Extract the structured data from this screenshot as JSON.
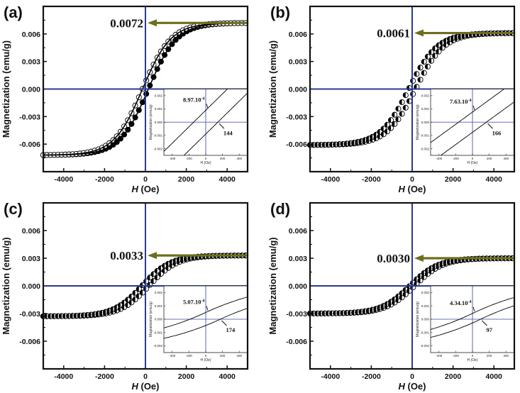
{
  "colors": {
    "frame": "#111111",
    "crosshair": "#2a3a8e",
    "inset_crosshair": "#6a74b4",
    "arrow": "#6b6e1e",
    "curve": "#000000"
  },
  "chart_data": [
    {
      "type": "scatter",
      "panel_label": "(a)",
      "xlabel_italic": "H",
      "xlabel_rest": " (Oe)",
      "ylabel": "Magnetization (emu/g)",
      "xlim": [
        -5000,
        5000
      ],
      "ylim": [
        -0.009,
        0.009
      ],
      "xticks": [
        -4000,
        -2000,
        0,
        2000,
        4000
      ],
      "xtick_labels": [
        "-4000",
        "-2000",
        "0",
        "2000",
        "4000"
      ],
      "yticks": [
        0.006,
        0.003,
        0.0,
        -0.003,
        -0.006
      ],
      "ytick_labels": [
        "0.006",
        "0.003",
        "0.000",
        "-0.003",
        "-0.006"
      ],
      "saturation_magnetization": 0.0072,
      "ms_annotation": "0.0072",
      "coercivity_Oe": 144,
      "remanence": 0.000897,
      "series_style": "hysteresis loop, filled and open circles with solid fit lines",
      "inset": {
        "xlabel": "H (Oe)",
        "ylabel": "Magnetization (emu/g)",
        "xlim": [
          -500,
          500
        ],
        "ylim": [
          -0.0025,
          0.0025
        ],
        "xticks": [
          -400,
          -200,
          0,
          200,
          400
        ],
        "xtick_labels": [
          "-400",
          "-200",
          "0",
          "200",
          "400"
        ],
        "yticks": [
          0.002,
          0.001,
          0.0,
          -0.001,
          -0.002
        ],
        "ytick_labels": [
          "0.002",
          "0.001",
          "0.000",
          "-0.001",
          "-0.002"
        ],
        "remanence_label": "8.97.10",
        "remanence_exp": "-4",
        "coercivity_label": "144",
        "slope_per_Oe": 6.2e-06
      }
    },
    {
      "type": "scatter",
      "panel_label": "(b)",
      "xlabel_italic": "H",
      "xlabel_rest": " (Oe)",
      "ylabel": "Magnetization (emu/g)",
      "xlim": [
        -5000,
        5000
      ],
      "ylim": [
        -0.009,
        0.009
      ],
      "xticks": [
        -4000,
        -2000,
        0,
        2000,
        4000
      ],
      "xtick_labels": [
        "-4000",
        "-2000",
        "0",
        "2000",
        "4000"
      ],
      "yticks": [
        0.006,
        0.003,
        0.0,
        -0.003,
        -0.006
      ],
      "ytick_labels": [
        "0.006",
        "0.003",
        "0.000",
        "-0.003",
        "-0.006"
      ],
      "saturation_magnetization": 0.0061,
      "ms_annotation": "0.0061",
      "coercivity_Oe": 166,
      "remanence": 0.000763,
      "series_style": "hysteresis loop, half-filled circles",
      "inset": {
        "xlabel": "H (Oe)",
        "ylabel": "Magnetization (emu/g)",
        "xlim": [
          -500,
          500
        ],
        "ylim": [
          -0.0025,
          0.0025
        ],
        "xticks": [
          -400,
          -200,
          0,
          200,
          400
        ],
        "xtick_labels": [
          "-400",
          "-200",
          "0",
          "200",
          "400"
        ],
        "yticks": [
          0.002,
          0.001,
          0.0,
          -0.001,
          -0.002
        ],
        "ytick_labels": [
          "0.002",
          "0.001",
          "0.000",
          "-0.001",
          "-0.002"
        ],
        "remanence_label": "7.63.10",
        "remanence_exp": "-4",
        "coercivity_label": "166",
        "slope_per_Oe": 4.6e-06
      }
    },
    {
      "type": "scatter",
      "panel_label": "(c)",
      "xlabel_italic": "H",
      "xlabel_rest": " (Oe)",
      "ylabel": "Magnetization (emu/g)",
      "xlim": [
        -5000,
        5000
      ],
      "ylim": [
        -0.009,
        0.009
      ],
      "xticks": [
        -4000,
        -2000,
        0,
        2000,
        4000
      ],
      "xtick_labels": [
        "-4000",
        "-2000",
        "0",
        "2000",
        "4000"
      ],
      "yticks": [
        0.006,
        0.003,
        0.0,
        -0.003,
        -0.006
      ],
      "ytick_labels": [
        "0.006",
        "0.003",
        "0.000",
        "-0.003",
        "-0.006"
      ],
      "saturation_magnetization": 0.0033,
      "ms_annotation": "0.0033",
      "coercivity_Oe": 174,
      "remanence": 0.000507,
      "series_style": "hysteresis loop, half-filled circles",
      "inset": {
        "xlabel": "H (Oe)",
        "ylabel": "Magnetization (emu/g)",
        "xlim": [
          -500,
          500
        ],
        "ylim": [
          -0.0025,
          0.0025
        ],
        "xticks": [
          -400,
          -200,
          0,
          200,
          400
        ],
        "xtick_labels": [
          "-400",
          "-200",
          "0",
          "200",
          "400"
        ],
        "yticks": [
          0.002,
          0.001,
          0.0,
          -0.001,
          -0.002
        ],
        "ytick_labels": [
          "0.002",
          "0.001",
          "0.000",
          "-0.001",
          "-0.002"
        ],
        "remanence_label": "5.07.10",
        "remanence_exp": "-4",
        "coercivity_label": "174",
        "slope_per_Oe": 2.9e-06
      }
    },
    {
      "type": "scatter",
      "panel_label": "(d)",
      "xlabel_italic": "H",
      "xlabel_rest": " (Oe)",
      "ylabel": "Magnetization (emu/g)",
      "xlim": [
        -5000,
        5000
      ],
      "ylim": [
        -0.009,
        0.009
      ],
      "xticks": [
        -4000,
        -2000,
        0,
        2000,
        4000
      ],
      "xtick_labels": [
        "-4000",
        "-2000",
        "0",
        "2000",
        "4000"
      ],
      "yticks": [
        0.006,
        0.003,
        0.0,
        -0.003,
        -0.006
      ],
      "ytick_labels": [
        "0.006",
        "0.003",
        "0.000",
        "-0.003",
        "-0.006"
      ],
      "saturation_magnetization": 0.003,
      "ms_annotation": "0.0030",
      "coercivity_Oe": 97,
      "remanence": 0.000434,
      "series_style": "hysteresis loop, half-filled circles",
      "inset": {
        "xlabel": "H (Oe)",
        "ylabel": "Magnetization (emu/g)",
        "xlim": [
          -500,
          500
        ],
        "ylim": [
          -0.0025,
          0.0025
        ],
        "xticks": [
          -400,
          -200,
          0,
          200,
          400
        ],
        "xtick_labels": [
          "-400",
          "-200",
          "0",
          "200",
          "400"
        ],
        "yticks": [
          0.002,
          0.001,
          0.0,
          -0.001,
          -0.002
        ],
        "ytick_labels": [
          "0.002",
          "0.001",
          "0.000",
          "-0.001",
          "-0.002"
        ],
        "remanence_label": "4.34.10",
        "remanence_exp": "-4",
        "coercivity_label": "97",
        "slope_per_Oe": 3e-06
      }
    }
  ]
}
